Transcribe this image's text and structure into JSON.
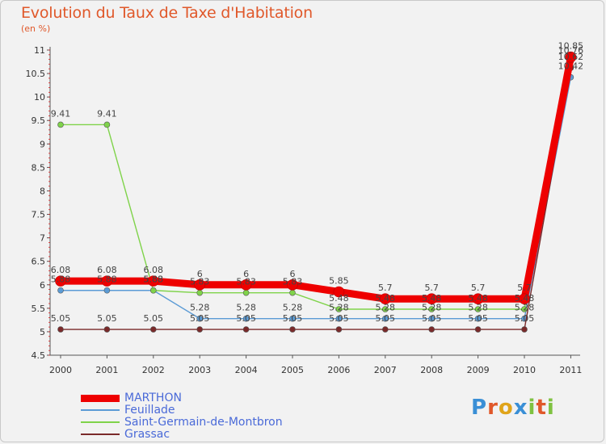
{
  "chart_data": {
    "type": "line",
    "title": "Evolution du Taux de Taxe d'Habitation",
    "subtitle": "(en %)",
    "xlabel": "",
    "ylabel": "",
    "categories": [
      "2000",
      "2001",
      "2002",
      "2003",
      "2004",
      "2005",
      "2006",
      "2007",
      "2008",
      "2009",
      "2010",
      "2011"
    ],
    "ylim": [
      4.5,
      11
    ],
    "yticks": [
      "4.5",
      "5",
      "5.5",
      "6",
      "6.5",
      "7",
      "7.5",
      "8",
      "8.5",
      "9",
      "9.5",
      "10",
      "10.5",
      "11"
    ],
    "series": [
      {
        "name": "MARTHON",
        "color": "#ee0000",
        "values": [
          6.08,
          6.08,
          6.08,
          6,
          6,
          6,
          5.85,
          5.7,
          5.7,
          5.7,
          5.7,
          10.85
        ],
        "labels": [
          "6.08",
          "6.08",
          "6.08",
          "6",
          "6",
          "6",
          "5.85",
          "5.7",
          "5.7",
          "5.7",
          "5.7",
          "10.85"
        ]
      },
      {
        "name": "Feuillade",
        "color": "#5b9bd5",
        "values": [
          5.88,
          5.88,
          5.88,
          5.28,
          5.28,
          5.28,
          5.28,
          5.28,
          5.28,
          5.28,
          5.28,
          10.42
        ],
        "labels": [
          "5.88",
          "5.88",
          "5.88",
          "5.28",
          "5.28",
          "5.28",
          "5.28",
          "5.28",
          "5.28",
          "5.28",
          "5.28",
          "10.42"
        ]
      },
      {
        "name": "Saint-Germain-de-Montbron",
        "color": "#7fd34a",
        "values": [
          9.41,
          9.41,
          5.88,
          5.83,
          5.83,
          5.83,
          5.48,
          5.48,
          5.48,
          5.48,
          5.48,
          10.76
        ],
        "labels": [
          "9.41",
          "9.41",
          "5.88",
          "5.83",
          "5.83",
          "5.83",
          "5.48",
          "5.48",
          "5.48",
          "5.48",
          "5.48",
          "10.76"
        ]
      },
      {
        "name": "Grassac",
        "color": "#7a2a2a",
        "values": [
          5.05,
          5.05,
          5.05,
          5.05,
          5.05,
          5.05,
          5.05,
          5.05,
          5.05,
          5.05,
          5.05,
          10.62
        ],
        "labels": [
          "5.05",
          "5.05",
          "5.05",
          "5.05",
          "5.05",
          "5.05",
          "5.05",
          "5.05",
          "5.05",
          "5.05",
          "5.05",
          "10.62"
        ]
      }
    ],
    "legend_position": "bottom-left",
    "grid": false
  },
  "logo": {
    "letters": [
      "P",
      "r",
      "o",
      "x",
      "i",
      "t",
      "i"
    ],
    "colors": [
      "#3a8fd6",
      "#e0582a",
      "#e0a41a",
      "#3a8fd6",
      "#7fc241",
      "#e0582a",
      "#7fc241"
    ]
  }
}
